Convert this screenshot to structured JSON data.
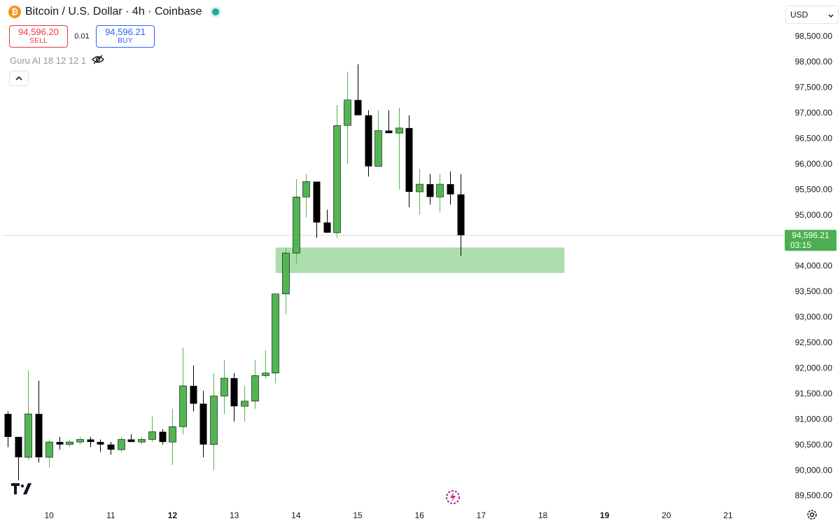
{
  "header": {
    "title": "Bitcoin / U.S. Dollar · 4h · Coinbase",
    "logo_glyph": "₿"
  },
  "trade": {
    "sell_price": "94,596.20",
    "sell_label": "SELL",
    "spread": "0.01",
    "buy_price": "94,596.21",
    "buy_label": "BUY"
  },
  "indicator": {
    "label": "Guru AI 18 12 12 1"
  },
  "currency": {
    "value": "USD"
  },
  "colors": {
    "up": "#52b552",
    "down": "#000000",
    "zone_fill": "#a8dba8",
    "price_line": "#4caf50",
    "price_label_bg": "#4caf50"
  },
  "chart_data": {
    "type": "candlestick",
    "title": "Bitcoin / U.S. Dollar · 4h · Coinbase",
    "y_ticks": [
      "98,500.00",
      "98,000.00",
      "97,500.00",
      "97,000.00",
      "96,500.00",
      "96,000.00",
      "95,500.00",
      "95,000.00",
      "94,000.00",
      "93,500.00",
      "93,000.00",
      "92,500.00",
      "92,000.00",
      "91,500.00",
      "91,000.00",
      "90,500.00",
      "90,000.00",
      "89,500.00"
    ],
    "x_ticks": [
      {
        "label": "10",
        "day": 10,
        "bold": false
      },
      {
        "label": "11",
        "day": 11,
        "bold": false
      },
      {
        "label": "12",
        "day": 12,
        "bold": true
      },
      {
        "label": "13",
        "day": 13,
        "bold": false
      },
      {
        "label": "14",
        "day": 14,
        "bold": false
      },
      {
        "label": "15",
        "day": 15,
        "bold": false
      },
      {
        "label": "16",
        "day": 16,
        "bold": false
      },
      {
        "label": "17",
        "day": 17,
        "bold": false
      },
      {
        "label": "18",
        "day": 18,
        "bold": false
      },
      {
        "label": "19",
        "day": 19,
        "bold": true
      },
      {
        "label": "20",
        "day": 20,
        "bold": false
      },
      {
        "label": "21",
        "day": 21,
        "bold": false
      }
    ],
    "ylim": [
      89400,
      98650
    ],
    "xlim_days": [
      9.25,
      21.85
    ],
    "start_day": 9.33,
    "step_days": 0.1667,
    "candles": [
      {
        "o": 91100,
        "h": 91150,
        "l": 90450,
        "c": 90650
      },
      {
        "o": 90650,
        "h": 90650,
        "l": 89800,
        "c": 90250
      },
      {
        "o": 90250,
        "h": 91950,
        "l": 90200,
        "c": 91100
      },
      {
        "o": 91100,
        "h": 91750,
        "l": 90150,
        "c": 90250
      },
      {
        "o": 90250,
        "h": 90600,
        "l": 90050,
        "c": 90550
      },
      {
        "o": 90550,
        "h": 90650,
        "l": 90400,
        "c": 90500
      },
      {
        "o": 90500,
        "h": 90600,
        "l": 90450,
        "c": 90550
      },
      {
        "o": 90550,
        "h": 90650,
        "l": 90500,
        "c": 90600
      },
      {
        "o": 90600,
        "h": 90650,
        "l": 90450,
        "c": 90550
      },
      {
        "o": 90550,
        "h": 90600,
        "l": 90350,
        "c": 90500
      },
      {
        "o": 90500,
        "h": 90550,
        "l": 90300,
        "c": 90400
      },
      {
        "o": 90400,
        "h": 90650,
        "l": 90350,
        "c": 90600
      },
      {
        "o": 90600,
        "h": 90700,
        "l": 90550,
        "c": 90550
      },
      {
        "o": 90550,
        "h": 90650,
        "l": 90500,
        "c": 90600
      },
      {
        "o": 90600,
        "h": 91050,
        "l": 90550,
        "c": 90750
      },
      {
        "o": 90750,
        "h": 90800,
        "l": 90500,
        "c": 90550
      },
      {
        "o": 90550,
        "h": 91200,
        "l": 90100,
        "c": 90850
      },
      {
        "o": 90850,
        "h": 92400,
        "l": 90700,
        "c": 91650
      },
      {
        "o": 91650,
        "h": 92050,
        "l": 91150,
        "c": 91300
      },
      {
        "o": 91300,
        "h": 91550,
        "l": 90250,
        "c": 90500
      },
      {
        "o": 90500,
        "h": 91900,
        "l": 90000,
        "c": 91450
      },
      {
        "o": 91450,
        "h": 92150,
        "l": 91100,
        "c": 91800
      },
      {
        "o": 91800,
        "h": 91900,
        "l": 90950,
        "c": 91250
      },
      {
        "o": 91250,
        "h": 91650,
        "l": 90950,
        "c": 91350
      },
      {
        "o": 91350,
        "h": 92150,
        "l": 91200,
        "c": 91850
      },
      {
        "o": 91850,
        "h": 92350,
        "l": 91800,
        "c": 91900
      },
      {
        "o": 91900,
        "h": 93450,
        "l": 91700,
        "c": 93450
      },
      {
        "o": 93450,
        "h": 94350,
        "l": 93050,
        "c": 94250
      },
      {
        "o": 94250,
        "h": 95700,
        "l": 94050,
        "c": 95350
      },
      {
        "o": 95350,
        "h": 95800,
        "l": 94950,
        "c": 95650
      },
      {
        "o": 95650,
        "h": 95650,
        "l": 94550,
        "c": 94850
      },
      {
        "o": 94850,
        "h": 95100,
        "l": 94650,
        "c": 94650
      },
      {
        "o": 94650,
        "h": 97150,
        "l": 94550,
        "c": 96750
      },
      {
        "o": 96750,
        "h": 97800,
        "l": 96000,
        "c": 97250
      },
      {
        "o": 97250,
        "h": 97950,
        "l": 96950,
        "c": 96950
      },
      {
        "o": 96950,
        "h": 97050,
        "l": 95750,
        "c": 95950
      },
      {
        "o": 95950,
        "h": 97050,
        "l": 95950,
        "c": 96650
      },
      {
        "o": 96650,
        "h": 97050,
        "l": 96600,
        "c": 96600
      },
      {
        "o": 96600,
        "h": 97100,
        "l": 95500,
        "c": 96700
      },
      {
        "o": 96700,
        "h": 96950,
        "l": 95150,
        "c": 95450
      },
      {
        "o": 95450,
        "h": 95900,
        "l": 95000,
        "c": 95600
      },
      {
        "o": 95600,
        "h": 95800,
        "l": 95200,
        "c": 95350
      },
      {
        "o": 95350,
        "h": 95800,
        "l": 95050,
        "c": 95600
      },
      {
        "o": 95600,
        "h": 95850,
        "l": 95200,
        "c": 95400
      },
      {
        "o": 95400,
        "h": 95800,
        "l": 94200,
        "c": 94600
      }
    ],
    "zone": {
      "y_low": 93860,
      "y_high": 94360,
      "start_day": 13.67,
      "end_day": 18.35
    },
    "last_price": {
      "value": 94596.21,
      "label": "94,596.21",
      "countdown": "03:15"
    }
  }
}
